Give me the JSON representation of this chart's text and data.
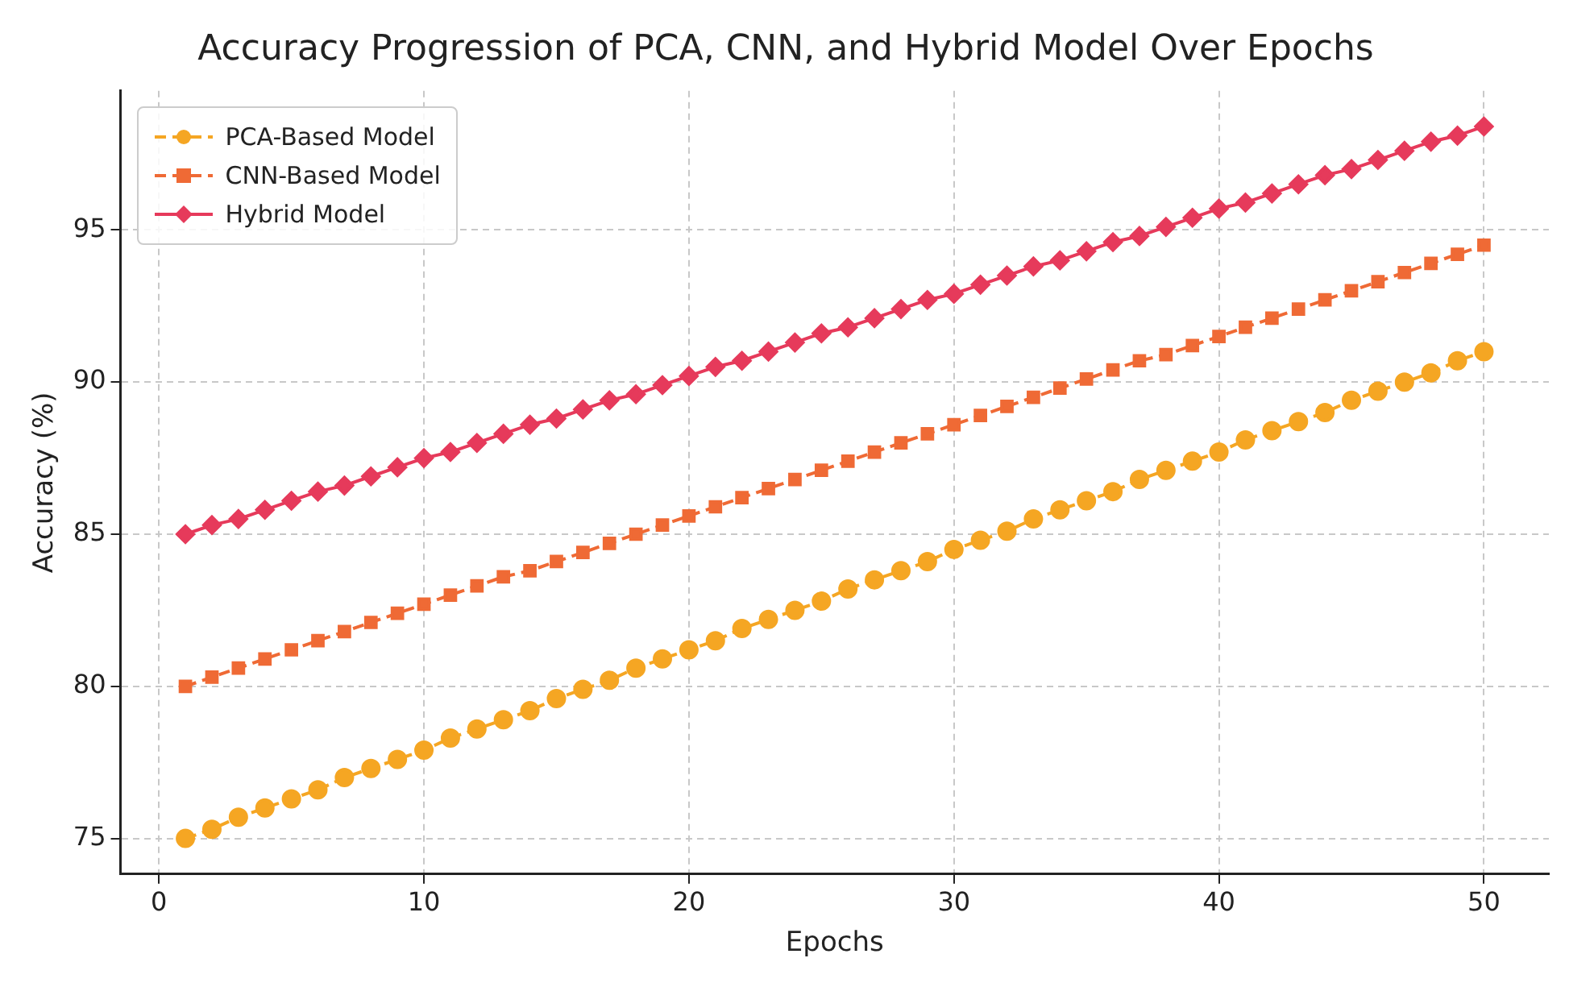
{
  "chart_data": {
    "type": "line",
    "title": "Accuracy Progression of PCA, CNN, and Hybrid Model Over Epochs",
    "xlabel": "Epochs",
    "ylabel": "Accuracy (%)",
    "x": [
      1,
      2,
      3,
      4,
      5,
      6,
      7,
      8,
      9,
      10,
      11,
      12,
      13,
      14,
      15,
      16,
      17,
      18,
      19,
      20,
      21,
      22,
      23,
      24,
      25,
      26,
      27,
      28,
      29,
      30,
      31,
      32,
      33,
      34,
      35,
      36,
      37,
      38,
      39,
      40,
      41,
      42,
      43,
      44,
      45,
      46,
      47,
      48,
      49,
      50
    ],
    "xlim": [
      -1.45,
      52.45
    ],
    "xticks": [
      0,
      10,
      20,
      30,
      40,
      50
    ],
    "ylim": [
      73.83,
      99.57
    ],
    "yticks": [
      75,
      80,
      85,
      90,
      95
    ],
    "grid": true,
    "legend": "top left",
    "series": [
      {
        "name": "PCA-Based Model",
        "color": "#f5a623",
        "marker": "circle",
        "line_style": "dashed",
        "values": [
          75.0,
          75.3,
          75.7,
          76.0,
          76.3,
          76.6,
          77.0,
          77.3,
          77.6,
          77.9,
          78.3,
          78.6,
          78.9,
          79.2,
          79.6,
          79.9,
          80.2,
          80.6,
          80.9,
          81.2,
          81.5,
          81.9,
          82.2,
          82.5,
          82.8,
          83.2,
          83.5,
          83.8,
          84.1,
          84.5,
          84.8,
          85.1,
          85.5,
          85.8,
          86.1,
          86.4,
          86.8,
          87.1,
          87.4,
          87.7,
          88.1,
          88.4,
          88.7,
          89.0,
          89.4,
          89.7,
          90.0,
          90.3,
          90.7,
          91.0
        ]
      },
      {
        "name": "CNN-Based Model",
        "color": "#ef6a35",
        "marker": "square",
        "line_style": "dashed",
        "values": [
          80.0,
          80.3,
          80.6,
          80.9,
          81.2,
          81.5,
          81.8,
          82.1,
          82.4,
          82.7,
          83.0,
          83.3,
          83.6,
          83.8,
          84.1,
          84.4,
          84.7,
          85.0,
          85.3,
          85.6,
          85.9,
          86.2,
          86.5,
          86.8,
          87.1,
          87.4,
          87.7,
          88.0,
          88.3,
          88.6,
          88.9,
          89.2,
          89.5,
          89.8,
          90.1,
          90.4,
          90.7,
          90.9,
          91.2,
          91.5,
          91.8,
          92.1,
          92.4,
          92.7,
          93.0,
          93.3,
          93.6,
          93.9,
          94.2,
          94.5
        ]
      },
      {
        "name": "Hybrid Model",
        "color": "#e63a5b",
        "marker": "diamond",
        "line_style": "solid",
        "values": [
          85.0,
          85.3,
          85.5,
          85.8,
          86.1,
          86.4,
          86.6,
          86.9,
          87.2,
          87.5,
          87.7,
          88.0,
          88.3,
          88.6,
          88.8,
          89.1,
          89.4,
          89.6,
          89.9,
          90.2,
          90.5,
          90.7,
          91.0,
          91.3,
          91.6,
          91.8,
          92.1,
          92.4,
          92.7,
          92.9,
          93.2,
          93.5,
          93.8,
          94.0,
          94.3,
          94.6,
          94.8,
          95.1,
          95.4,
          95.7,
          95.9,
          96.2,
          96.5,
          96.8,
          97.0,
          97.3,
          97.6,
          97.9,
          98.1,
          98.4
        ]
      }
    ]
  }
}
